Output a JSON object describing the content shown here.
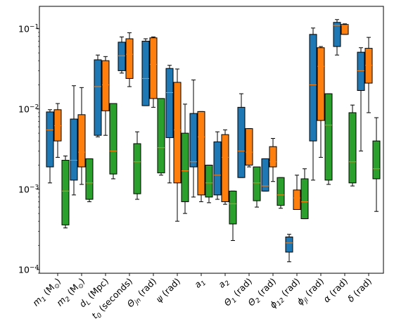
{
  "chart_data": {
    "type": "box",
    "y_scale": "log",
    "ylim": [
      9e-05,
      0.19
    ],
    "y_ticks": [
      {
        "value": 0.0001,
        "label": "10",
        "exp": "−4"
      },
      {
        "value": 0.001,
        "label": "10",
        "exp": "−3"
      },
      {
        "value": 0.01,
        "label": "10",
        "exp": "−2"
      },
      {
        "value": 0.1,
        "label": "10",
        "exp": "−1"
      }
    ],
    "categories": [
      {
        "main": "m",
        "sub": "1",
        "rest": " (M",
        "sub2": "⊙",
        "end": ")"
      },
      {
        "main": "m",
        "sub": "2",
        "rest": " (M",
        "sub2": "⊙",
        "end": ")"
      },
      {
        "main": "d",
        "sub": "L",
        "rest": " (Mpc)",
        "sub2": "",
        "end": ""
      },
      {
        "main": "t",
        "sub": "0",
        "rest": " (seconds)",
        "sub2": "",
        "end": ""
      },
      {
        "main": "Θ",
        "sub": "jn",
        "rest": " (rad)",
        "sub2": "",
        "end": ""
      },
      {
        "main": "ψ",
        "sub": "",
        "rest": " (rad)",
        "sub2": "",
        "end": ""
      },
      {
        "main": "a",
        "sub": "1",
        "rest": "",
        "sub2": "",
        "end": ""
      },
      {
        "main": "a",
        "sub": "2",
        "rest": "",
        "sub2": "",
        "end": ""
      },
      {
        "main": "Θ",
        "sub": "1",
        "rest": " (rad)",
        "sub2": "",
        "end": ""
      },
      {
        "main": "Θ",
        "sub": "2",
        "rest": " (rad)",
        "sub2": "",
        "end": ""
      },
      {
        "main": "ϕ",
        "sub": "12",
        "rest": " (rad)",
        "sub2": "",
        "end": ""
      },
      {
        "main": "ϕ",
        "sub": "jl",
        "rest": " (rad)",
        "sub2": "",
        "end": ""
      },
      {
        "main": "α",
        "sub": "",
        "rest": " (rad)",
        "sub2": "",
        "end": ""
      },
      {
        "main": "δ",
        "sub": "",
        "rest": " (rad)",
        "sub2": "",
        "end": ""
      }
    ],
    "series": [
      {
        "color": "#1f77b4",
        "boxes": [
          {
            "wlo": 0.0012,
            "q1": 0.0019,
            "med": 0.0055,
            "q3": 0.0092,
            "whi": 0.0098
          },
          {
            "wlo": 0.00085,
            "q1": 0.0013,
            "med": 0.0023,
            "q3": 0.0075,
            "whi": 0.0195
          },
          {
            "wlo": 0.0045,
            "q1": 0.0047,
            "med": 0.019,
            "q3": 0.041,
            "whi": 0.047
          },
          {
            "wlo": 0.028,
            "q1": 0.03,
            "med": 0.046,
            "q3": 0.068,
            "whi": 0.079
          },
          {
            "wlo": 0.011,
            "q1": 0.011,
            "med": 0.024,
            "q3": 0.07,
            "whi": 0.075
          },
          {
            "wlo": 0.0012,
            "q1": 0.0044,
            "med": 0.016,
            "q3": 0.032,
            "whi": 0.035
          },
          {
            "wlo": 0.0008,
            "q1": 0.0019,
            "med": 0.0022,
            "q3": 0.0088,
            "whi": 0.023
          },
          {
            "wlo": 0.00075,
            "q1": 0.00085,
            "med": 0.0015,
            "q3": 0.0039,
            "whi": 0.0052
          },
          {
            "wlo": 0.0014,
            "q1": 0.0014,
            "med": 0.003,
            "q3": 0.0105,
            "whi": 0.0155
          },
          {
            "wlo": 0.00095,
            "q1": 0.00095,
            "med": 0.0011,
            "q3": 0.0024,
            "whi": 0.0024
          },
          {
            "wlo": 0.000125,
            "q1": 0.000165,
            "med": 0.000215,
            "q3": 0.000255,
            "whi": 0.000275
          },
          {
            "wlo": 0.0013,
            "q1": 0.004,
            "med": 0.02,
            "q3": 0.085,
            "whi": 0.102
          },
          {
            "wlo": 0.047,
            "q1": 0.06,
            "med": 0.11,
            "q3": 0.12,
            "whi": 0.13
          },
          {
            "wlo": 0.003,
            "q1": 0.017,
            "med": 0.03,
            "q3": 0.051,
            "whi": 0.058
          }
        ]
      },
      {
        "color": "#ff7f0e",
        "boxes": [
          {
            "wlo": 0.0025,
            "q1": 0.004,
            "med": 0.0062,
            "q3": 0.0098,
            "whi": 0.0117
          },
          {
            "wlo": 0.00115,
            "q1": 0.0019,
            "med": 0.0029,
            "q3": 0.0085,
            "whi": 0.0185
          },
          {
            "wlo": 0.0047,
            "q1": 0.0095,
            "med": 0.02,
            "q3": 0.04,
            "whi": 0.045
          },
          {
            "wlo": 0.019,
            "q1": 0.024,
            "med": 0.048,
            "q3": 0.075,
            "whi": 0.089
          },
          {
            "wlo": 0.0105,
            "q1": 0.0135,
            "med": 0.036,
            "q3": 0.077,
            "whi": 0.079
          },
          {
            "wlo": 0.0004,
            "q1": 0.0012,
            "med": 0.0055,
            "q3": 0.0215,
            "whi": 0.0315
          },
          {
            "wlo": 0.0007,
            "q1": 0.00085,
            "med": 0.0045,
            "q3": 0.0093,
            "whi": 0.0093
          },
          {
            "wlo": 0.00065,
            "q1": 0.0007,
            "med": 0.0025,
            "q3": 0.0048,
            "whi": 0.0055
          },
          {
            "wlo": 0.0019,
            "q1": 0.002,
            "med": 0.0029,
            "q3": 0.0057,
            "whi": 0.0057
          },
          {
            "wlo": 0.00125,
            "q1": 0.0019,
            "med": 0.0022,
            "q3": 0.0034,
            "whi": 0.0043
          },
          {
            "wlo": 0.00056,
            "q1": 0.00056,
            "med": 0.00078,
            "q3": 0.00098,
            "whi": 0.0015
          },
          {
            "wlo": 0.0025,
            "q1": 0.0072,
            "med": 0.034,
            "q3": 0.058,
            "whi": 0.06
          },
          {
            "wlo": 0.085,
            "q1": 0.085,
            "med": 0.11,
            "q3": 0.113,
            "whi": 0.115
          },
          {
            "wlo": 0.009,
            "q1": 0.021,
            "med": 0.035,
            "q3": 0.057,
            "whi": 0.078
          }
        ]
      },
      {
        "color": "#2ca02c",
        "boxes": [
          {
            "wlo": 0.00033,
            "q1": 0.00036,
            "med": 0.00095,
            "q3": 0.0023,
            "whi": 0.0026
          },
          {
            "wlo": 0.0007,
            "q1": 0.00075,
            "med": 0.0012,
            "q3": 0.0024,
            "whi": 0.0024
          },
          {
            "wlo": 0.00135,
            "q1": 0.00155,
            "med": 0.003,
            "q3": 0.0117,
            "whi": 0.0117
          },
          {
            "wlo": 0.00075,
            "q1": 0.00088,
            "med": 0.0022,
            "q3": 0.0037,
            "whi": 0.0052
          },
          {
            "wlo": 0.0015,
            "q1": 0.0016,
            "med": 0.0033,
            "q3": 0.0135,
            "whi": 0.0135
          },
          {
            "wlo": 0.0005,
            "q1": 0.0007,
            "med": 0.0017,
            "q3": 0.005,
            "whi": 0.0115
          },
          {
            "wlo": 0.00068,
            "q1": 0.0008,
            "med": 0.0012,
            "q3": 0.002,
            "whi": 0.002
          },
          {
            "wlo": 0.00023,
            "q1": 0.00037,
            "med": 0.00066,
            "q3": 0.00095,
            "whi": 0.00095
          },
          {
            "wlo": 0.0006,
            "q1": 0.00072,
            "med": 0.0012,
            "q3": 0.0019,
            "whi": 0.0019
          },
          {
            "wlo": 0.00058,
            "q1": 0.00063,
            "med": 0.00085,
            "q3": 0.0014,
            "whi": 0.0014
          },
          {
            "wlo": 0.00043,
            "q1": 0.00043,
            "med": 0.0007,
            "q3": 0.00135,
            "whi": 0.0018
          },
          {
            "wlo": 0.00115,
            "q1": 0.0013,
            "med": 0.0063,
            "q3": 0.0155,
            "whi": 0.0155
          },
          {
            "wlo": 0.0011,
            "q1": 0.0012,
            "med": 0.0022,
            "q3": 0.009,
            "whi": 0.0112
          },
          {
            "wlo": 0.00053,
            "q1": 0.00135,
            "med": 0.0018,
            "q3": 0.004,
            "whi": 0.0078
          }
        ]
      }
    ],
    "median_color": "#ff7f0e"
  }
}
